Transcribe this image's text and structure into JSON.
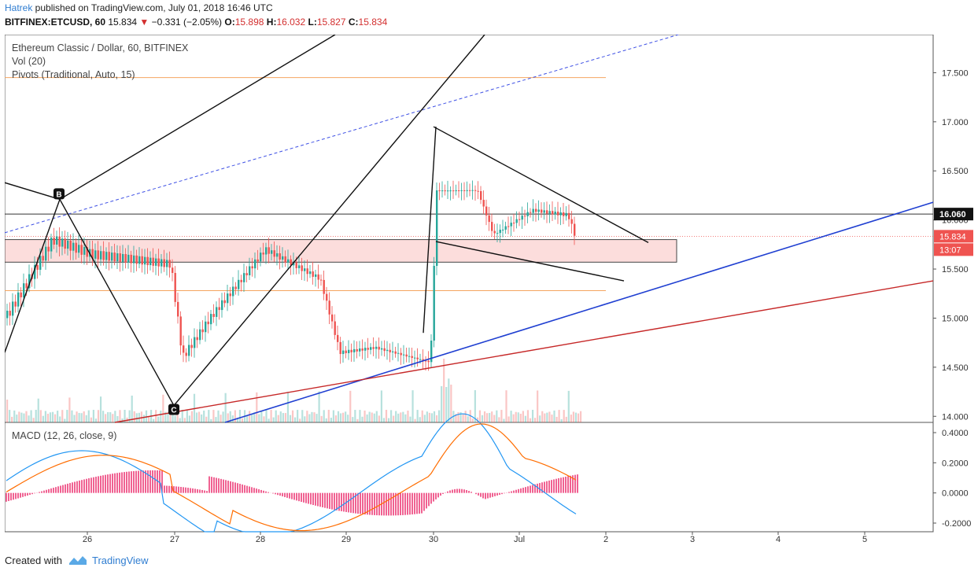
{
  "header": {
    "author": "Hatrek",
    "published_text": " published on TradingView.com, July 01, 2018 16:46 UTC",
    "symbol": "BITFINEX:ETCUSD, 60",
    "last": "15.834",
    "change_arrow": "▼",
    "change": "−0.331 (−2.05%)",
    "o_label": "O:",
    "o_value": "15.898",
    "h_label": "H:",
    "h_value": "16.032",
    "l_label": "L:",
    "l_value": "15.827",
    "c_label": "C:",
    "c_value": "15.834"
  },
  "legend": {
    "title": "Ethereum Classic / Dollar, 60, BITFINEX",
    "volume": "Vol (20)",
    "pivots": "Pivots (Traditional, Auto, 15)",
    "macd": "MACD (12, 26, close, 9)"
  },
  "price_axis": {
    "ticks": [
      "17.500",
      "17.000",
      "16.500",
      "16.000",
      "15.500",
      "15.000",
      "14.500",
      "14.000"
    ],
    "badges": [
      {
        "label": "16.060",
        "value": 16.06,
        "bg": "#111111"
      },
      {
        "label": "15.834",
        "value": 15.834,
        "bg": "#ef5350"
      },
      {
        "label": "13:07",
        "value": 15.72,
        "bg": "#ef5350"
      }
    ]
  },
  "macd_axis": {
    "ticks": [
      "0.4000",
      "0.2000",
      "0.0000",
      "-0.2000"
    ]
  },
  "time_axis": {
    "labels": [
      "26",
      "27",
      "28",
      "29",
      "30",
      "Jul",
      "2",
      "3",
      "4",
      "5"
    ]
  },
  "markers": {
    "b": "B",
    "c": "C"
  },
  "footer": {
    "created_with": "Created with",
    "brand": "TradingView"
  },
  "colors": {
    "up": "#26a69a",
    "down": "#ef5350",
    "pivot": "#f4a460",
    "blue_line": "#1f3fd1",
    "red_line": "#c62828",
    "macd": "#2196f3",
    "signal": "#ff6d00"
  },
  "chart_data": {
    "type": "candlestick",
    "symbol": "BITFINEX:ETCUSD",
    "interval": "60",
    "x_range": [
      "25",
      "5"
    ],
    "y_range": [
      13.97,
      17.92
    ],
    "ohlc_last": {
      "open": 15.898,
      "high": 16.032,
      "low": 15.827,
      "close": 15.834
    },
    "pivot_levels": [
      17.45,
      15.28
    ],
    "horizontal_line": 16.06,
    "zone": [
      15.57,
      15.8
    ],
    "macd_range": [
      -0.26,
      0.42
    ],
    "candles_daily_path": [
      {
        "day": "25",
        "close": 15.0
      },
      {
        "day": "26",
        "close": 15.8
      },
      {
        "day": "27",
        "close": 14.75
      },
      {
        "day": "28",
        "close": 15.55
      },
      {
        "day": "29",
        "close": 14.6
      },
      {
        "day": "30",
        "close": 16.3
      },
      {
        "day": "Jul",
        "close": 16.1
      }
    ]
  }
}
